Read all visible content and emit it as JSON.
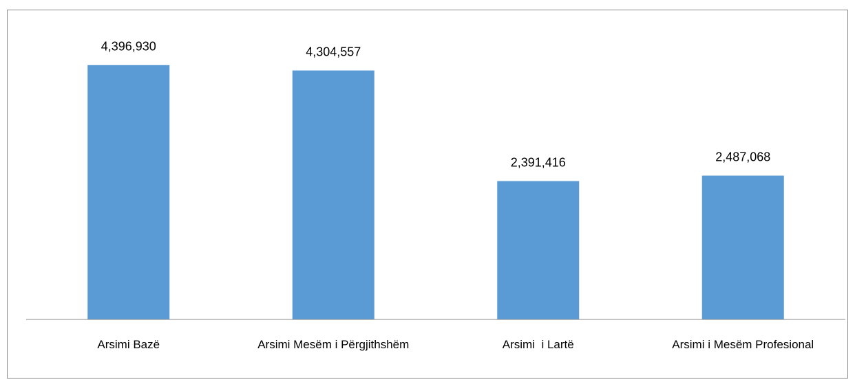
{
  "chart_data": {
    "type": "bar",
    "categories": [
      "Arsimi Bazë",
      "Arsimi Mesëm i Përgjithshëm",
      "Arsimi  i Lartë",
      "Arsimi i Mesëm Profesional"
    ],
    "values": [
      4396930,
      4304557,
      2391416,
      2487068
    ],
    "value_labels": [
      "4,396,930",
      "4,304,557",
      "2,391,416",
      "2,487,068"
    ],
    "color": "#5b9bd5",
    "ylim": [
      0,
      5000000
    ]
  }
}
